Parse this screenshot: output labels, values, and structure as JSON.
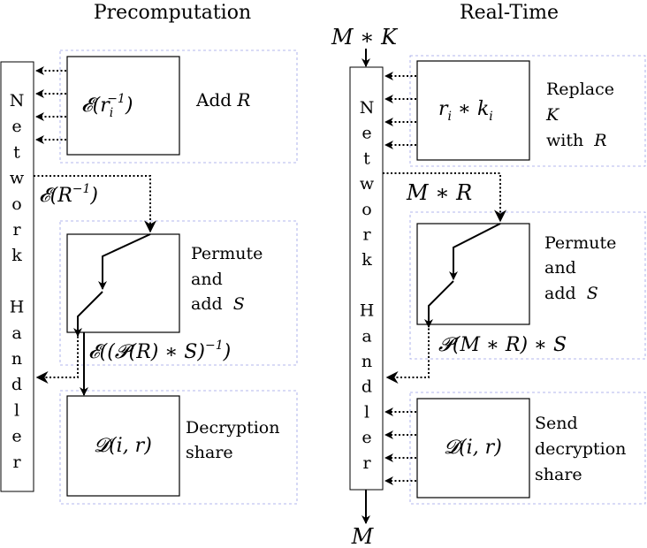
{
  "precomputation": {
    "title": "Precomputation",
    "handler_letters": [
      "N",
      "e",
      "t",
      "w",
      "o",
      "r",
      "k",
      "",
      "H",
      "a",
      "n",
      "d",
      "l",
      "e",
      "r"
    ],
    "box1_label": "𝓔(r",
    "box1_sub": "i",
    "box1_sup": "−1",
    "box1_close": ")",
    "box1_note": "Add",
    "box1_note_var": "R",
    "arrow1_label": "𝓔(R",
    "arrow1_sup": "−1",
    "arrow1_close": ")",
    "box2_note_line1": "Permute",
    "box2_note_line2": "and",
    "box2_note_line3": "add",
    "box2_note_var": "S",
    "arrow2_label": "𝓔((𝓟(R) ∗ S)",
    "arrow2_sup": "−1",
    "arrow2_close": ")",
    "box3_label": "𝓓(i, r)",
    "box3_note_line1": "Decryption",
    "box3_note_line2": "share"
  },
  "realtime": {
    "title": "Real-Time",
    "input_label": "M ∗ K",
    "output_label": "M",
    "handler_letters": [
      "N",
      "e",
      "t",
      "w",
      "o",
      "r",
      "k",
      "",
      "H",
      "a",
      "n",
      "d",
      "l",
      "e",
      "r"
    ],
    "box1_label_r": "r",
    "box1_label_sub1": "i",
    "box1_label_mid": " ∗ k",
    "box1_label_sub2": "i",
    "box1_note_line1": "Replace",
    "box1_note_line2": "K",
    "box1_note_line3": "with",
    "box1_note_var": "R",
    "arrow1_label": "M ∗ R",
    "box2_note_line1": "Permute",
    "box2_note_line2": "and",
    "box2_note_line3": "add",
    "box2_note_var": "S",
    "arrow2_label": "𝓟(M ∗ R) ∗ S",
    "box3_label": "𝓓(i, r)",
    "box3_note_line1": "Send",
    "box3_note_line2": "decryption",
    "box3_note_line3": "share"
  },
  "colors": {
    "dashed_frame": "#9aa0e6",
    "line": "#000000"
  }
}
